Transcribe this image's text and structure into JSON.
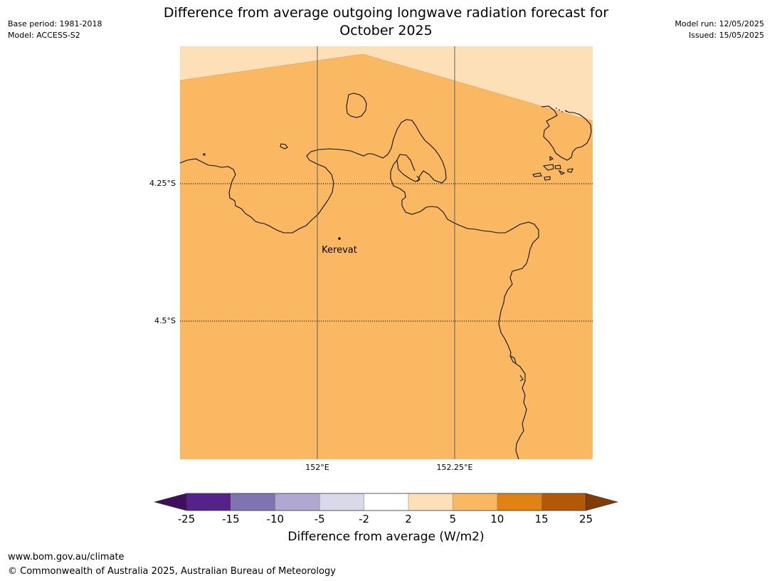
{
  "header": {
    "title_line1": "Difference from average outgoing longwave radiation forecast for",
    "title_line2": "October 2025",
    "base_period": "Base period: 1981-2018",
    "model": "Model: ACCESS-S2",
    "model_run": "Model run: 12/05/2025",
    "issued": "Issued: 15/05/2025"
  },
  "map": {
    "lat_labels": [
      "4.25°S",
      "4.5°S"
    ],
    "lon_labels": [
      "152°E",
      "152.25°E"
    ],
    "place_name": "Kerevat",
    "colors": {
      "land_water_fill": "#fab862",
      "light_band": "#fde0b7",
      "coast": "#000000",
      "grid": "#555555"
    }
  },
  "colorbar": {
    "title": "Difference from average (W/m2)",
    "ticks": [
      "-25",
      "-15",
      "-10",
      "-5",
      "-2",
      "2",
      "5",
      "10",
      "15",
      "25"
    ],
    "colors": [
      "#3f0f5e",
      "#54228a",
      "#8073b1",
      "#b1a8d2",
      "#d9d9ea",
      "#ffffff",
      "#fde0b7",
      "#fab862",
      "#e08214",
      "#b35806",
      "#7f3b08"
    ]
  },
  "footer": {
    "url": "www.bom.gov.au/climate",
    "copyright": "© Commonwealth of Australia 2025, Australian Bureau of Meteorology"
  }
}
